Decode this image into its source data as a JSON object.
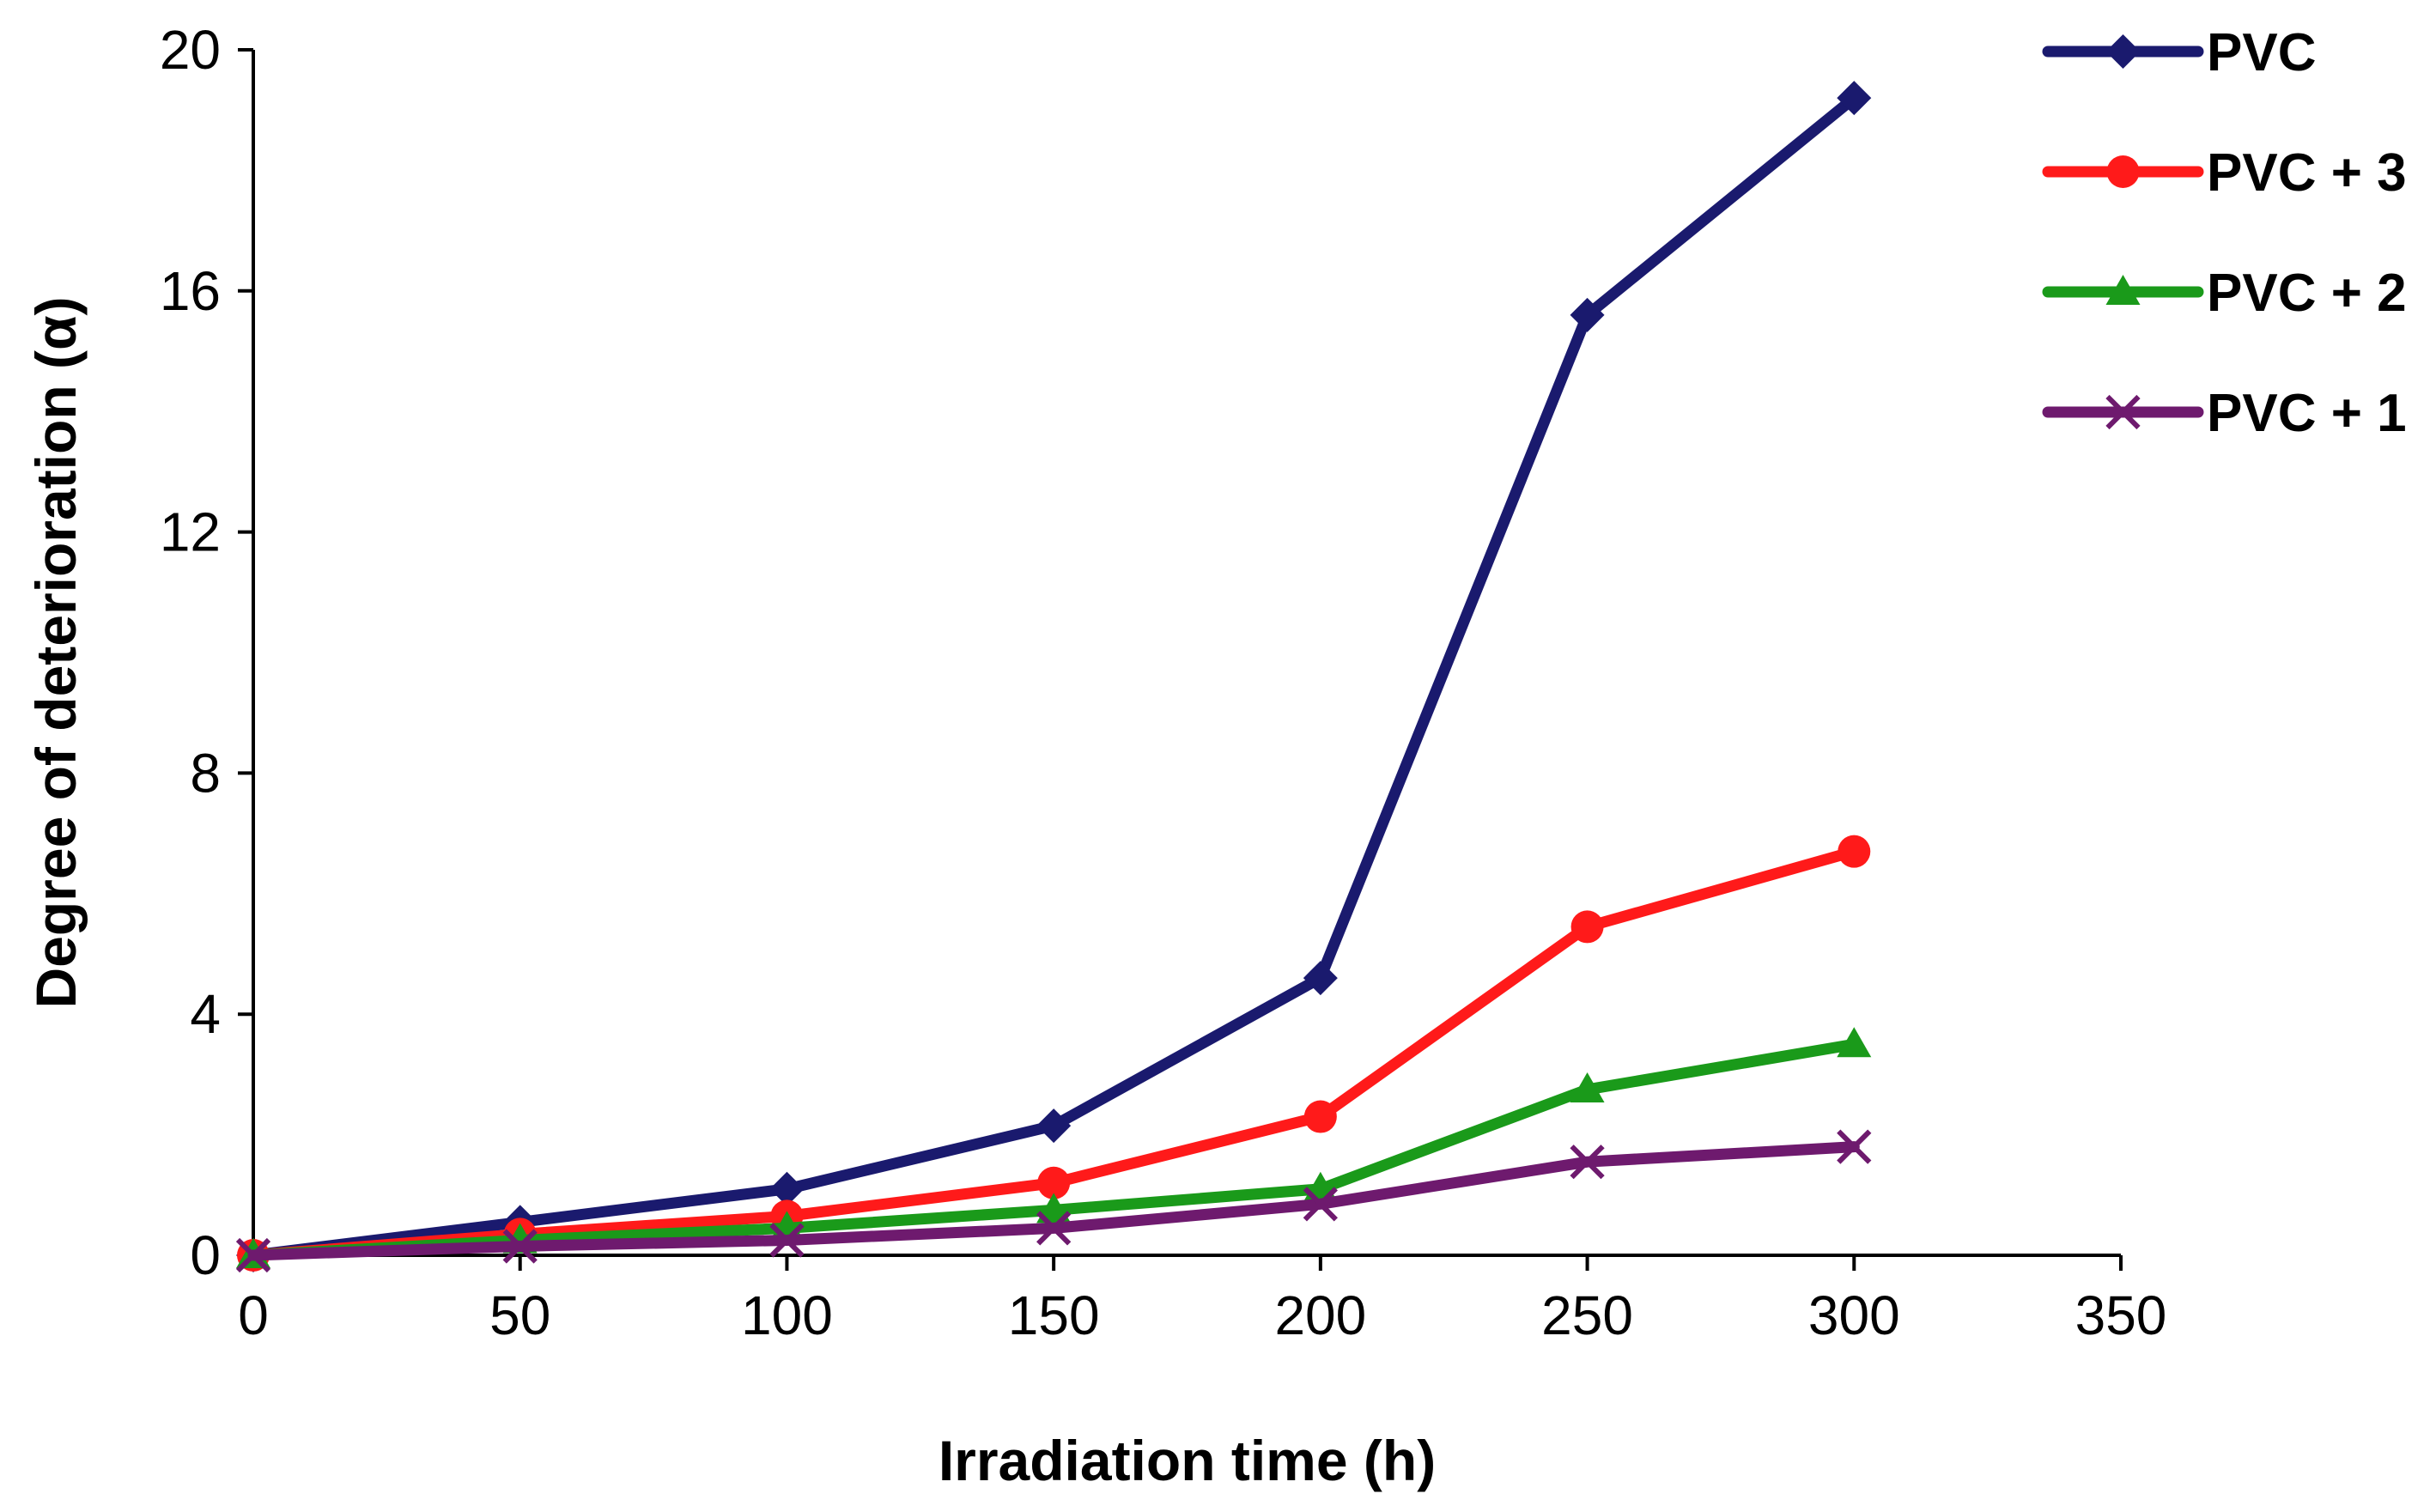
{
  "chart_data": {
    "type": "line",
    "title": "",
    "xlabel": "Irradiation  time (h)",
    "ylabel": "Degree of deterioration (α)",
    "xlim": [
      0,
      350
    ],
    "ylim": [
      0,
      20
    ],
    "xticks": [
      0,
      50,
      100,
      150,
      200,
      250,
      300,
      350
    ],
    "yticks": [
      0,
      4,
      8,
      12,
      16,
      20
    ],
    "grid": false,
    "legend_position": "top-right",
    "x": [
      0,
      50,
      100,
      150,
      200,
      250,
      300
    ],
    "series": [
      {
        "name": "PVC",
        "color": "#1a1a6e",
        "marker": "diamond",
        "values": [
          0,
          0.55,
          1.1,
          2.15,
          4.6,
          15.6,
          19.2
        ]
      },
      {
        "name": "PVC + 3",
        "color": "#ff1a1a",
        "marker": "circle",
        "values": [
          0,
          0.35,
          0.65,
          1.2,
          2.3,
          5.45,
          6.7
        ]
      },
      {
        "name": "PVC + 2",
        "color": "#1a9a1a",
        "marker": "triangle",
        "values": [
          0,
          0.25,
          0.45,
          0.75,
          1.1,
          2.75,
          3.5
        ]
      },
      {
        "name": "PVC + 1",
        "color": "#6e1a6e",
        "marker": "x",
        "values": [
          0,
          0.15,
          0.25,
          0.45,
          0.85,
          1.55,
          1.8
        ]
      }
    ]
  }
}
